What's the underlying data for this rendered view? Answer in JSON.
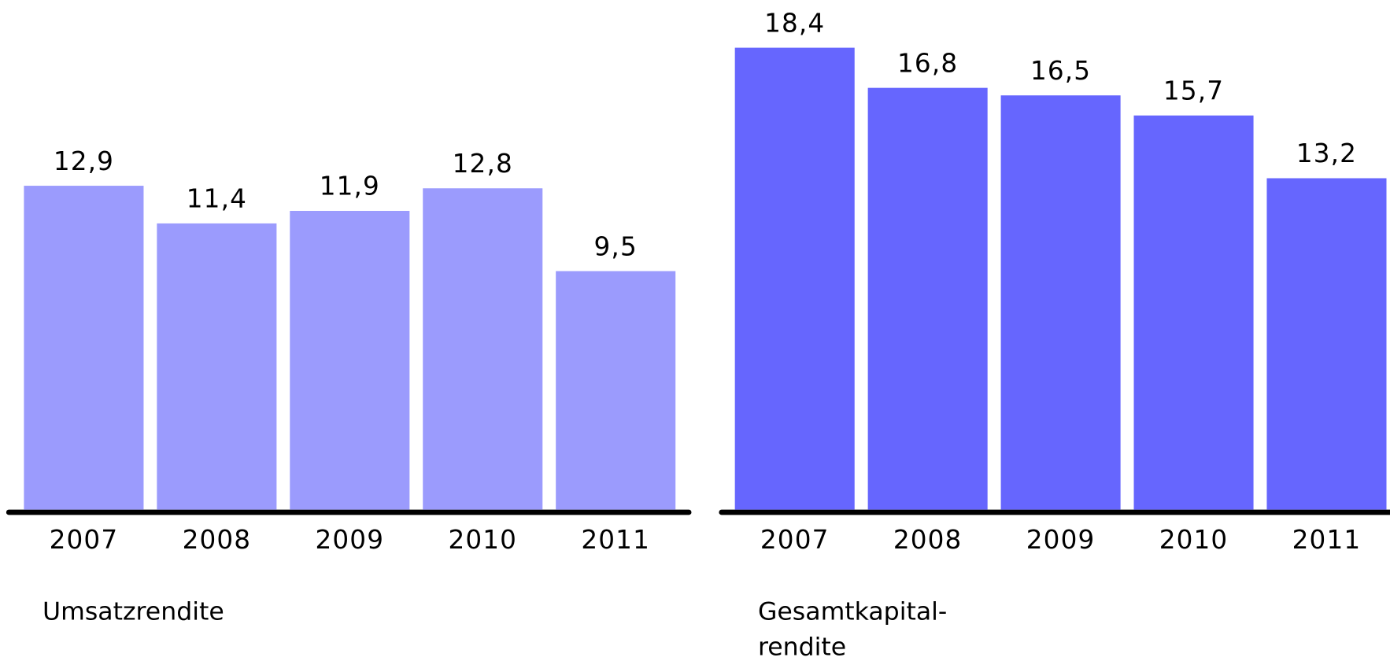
{
  "chart_data": [
    {
      "type": "bar",
      "title": "Umsatzrendite",
      "categories": [
        "2007",
        "2008",
        "2009",
        "2010",
        "2011"
      ],
      "values": [
        12.9,
        11.4,
        11.9,
        12.8,
        9.5
      ],
      "value_labels": [
        "12,9",
        "11,4",
        "11,9",
        "12,8",
        "9,5"
      ],
      "color": "#9b9bfd",
      "ylim": [
        0,
        20.3
      ]
    },
    {
      "type": "bar",
      "title": "Gesamtkapital-\nrendite",
      "categories": [
        "2007",
        "2008",
        "2009",
        "2010",
        "2011"
      ],
      "values": [
        18.4,
        16.8,
        16.5,
        15.7,
        13.2
      ],
      "value_labels": [
        "18,4",
        "16,8",
        "16,5",
        "15,7",
        "13,2"
      ],
      "color": "#6666fe",
      "ylim": [
        0,
        20.3
      ]
    }
  ]
}
